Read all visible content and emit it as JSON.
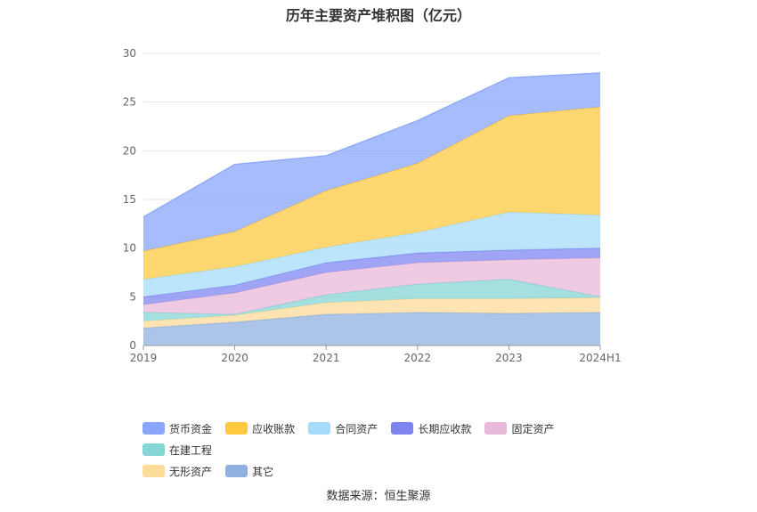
{
  "chart_data": {
    "type": "area",
    "stacked": true,
    "title": "历年主要资产堆积图（亿元）",
    "categories": [
      "2019",
      "2020",
      "2021",
      "2022",
      "2023",
      "2024H1"
    ],
    "ylim": [
      0,
      30
    ],
    "yticks": [
      "0",
      "5",
      "10",
      "15",
      "20",
      "25",
      "30"
    ],
    "grid": true,
    "legend_position": "bottom",
    "series": [
      {
        "name": "其它",
        "color": "#8fb0e0",
        "values": [
          1.8,
          2.4,
          3.2,
          3.4,
          3.3,
          3.4
        ]
      },
      {
        "name": "无形资产",
        "color": "#fddb9a",
        "values": [
          0.7,
          0.7,
          1.2,
          1.4,
          1.5,
          1.5
        ]
      },
      {
        "name": "在建工程",
        "color": "#86d6d6",
        "values": [
          0.9,
          0.1,
          0.8,
          1.5,
          2.0,
          0.1
        ]
      },
      {
        "name": "固定资产",
        "color": "#e8b9d8",
        "values": [
          0.8,
          2.2,
          2.3,
          2.2,
          2.0,
          4.0
        ]
      },
      {
        "name": "长期应收款",
        "color": "#7f85f0",
        "values": [
          0.8,
          0.8,
          1.0,
          1.0,
          1.0,
          1.0
        ]
      },
      {
        "name": "合同资产",
        "color": "#a6dcfa",
        "values": [
          1.8,
          1.9,
          1.6,
          2.1,
          3.9,
          3.4
        ]
      },
      {
        "name": "应收账款",
        "color": "#ffc940",
        "values": [
          2.9,
          3.6,
          5.8,
          7.1,
          9.9,
          11.1
        ]
      },
      {
        "name": "货币资金",
        "color": "#8aa6fb",
        "values": [
          3.5,
          6.9,
          3.6,
          4.4,
          3.9,
          3.5
        ]
      }
    ]
  },
  "legend": {
    "row1": [
      {
        "label": "货币资金",
        "color": "#8aa6fb"
      },
      {
        "label": "应收账款",
        "color": "#ffc940"
      },
      {
        "label": "合同资产",
        "color": "#a6dcfa"
      },
      {
        "label": "长期应收款",
        "color": "#7f85f0"
      },
      {
        "label": "固定资产",
        "color": "#e8b9d8"
      },
      {
        "label": "在建工程",
        "color": "#86d6d6"
      }
    ],
    "row2": [
      {
        "label": "无形资产",
        "color": "#fddb9a"
      },
      {
        "label": "其它",
        "color": "#8fb0e0"
      }
    ]
  },
  "source": "数据来源：恒生聚源"
}
